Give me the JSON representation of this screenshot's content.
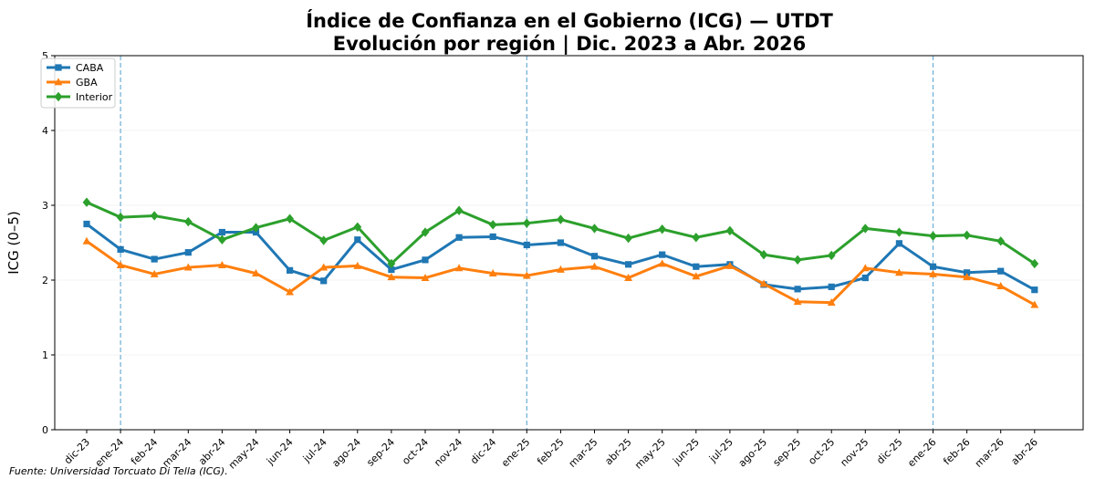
{
  "chart_data": {
    "type": "line",
    "title": "Índice de Confianza en el Gobierno (ICG) — UTDT",
    "subtitle": "Evolución por región | Dic. 2023 a Abr. 2026",
    "xlabel": "",
    "ylabel": "ICG (0–5)",
    "ylim": [
      0,
      5
    ],
    "yticks": [
      "0",
      "1",
      "2",
      "3",
      "4",
      "5"
    ],
    "grid": "horizontal",
    "legend": "top-left",
    "categories": [
      "dic-23",
      "ene-24",
      "feb-24",
      "mar-24",
      "abr-24",
      "may-24",
      "jun-24",
      "jul-24",
      "ago-24",
      "sep-24",
      "oct-24",
      "nov-24",
      "dic-24",
      "ene-25",
      "feb-25",
      "mar-25",
      "abr-25",
      "may-25",
      "jun-25",
      "jul-25",
      "ago-25",
      "sep-25",
      "oct-25",
      "nov-25",
      "dic-25",
      "ene-26",
      "feb-26",
      "mar-26",
      "abr-26"
    ],
    "vlines_at": [
      "ene-24",
      "ene-25",
      "ene-26"
    ],
    "series": [
      {
        "name": "CABA",
        "color": "#1f77b4",
        "marker": "square",
        "values": [
          2.75,
          2.41,
          2.28,
          2.37,
          2.64,
          2.64,
          2.13,
          1.99,
          2.54,
          2.14,
          2.27,
          2.57,
          2.58,
          2.47,
          2.5,
          2.32,
          2.21,
          2.34,
          2.18,
          2.21,
          1.94,
          1.88,
          1.91,
          2.03,
          2.49,
          2.18,
          2.1,
          2.12,
          1.87
        ]
      },
      {
        "name": "GBA",
        "color": "#ff7f0e",
        "marker": "triangle",
        "values": [
          2.52,
          2.2,
          2.08,
          2.17,
          2.2,
          2.09,
          1.84,
          2.17,
          2.19,
          2.04,
          2.03,
          2.16,
          2.09,
          2.06,
          2.14,
          2.18,
          2.03,
          2.22,
          2.05,
          2.19,
          1.95,
          1.71,
          1.7,
          2.16,
          2.1,
          2.08,
          2.04,
          1.92,
          1.67
        ]
      },
      {
        "name": "Interior",
        "color": "#2ca02c",
        "marker": "diamond",
        "values": [
          3.04,
          2.84,
          2.86,
          2.78,
          2.54,
          2.7,
          2.82,
          2.53,
          2.71,
          2.22,
          2.64,
          2.93,
          2.74,
          2.76,
          2.81,
          2.69,
          2.56,
          2.68,
          2.57,
          2.66,
          2.34,
          2.27,
          2.33,
          2.69,
          2.64,
          2.59,
          2.6,
          2.52,
          2.22
        ]
      }
    ],
    "source": "Fuente: Universidad Torcuato Di Tella (ICG)."
  }
}
